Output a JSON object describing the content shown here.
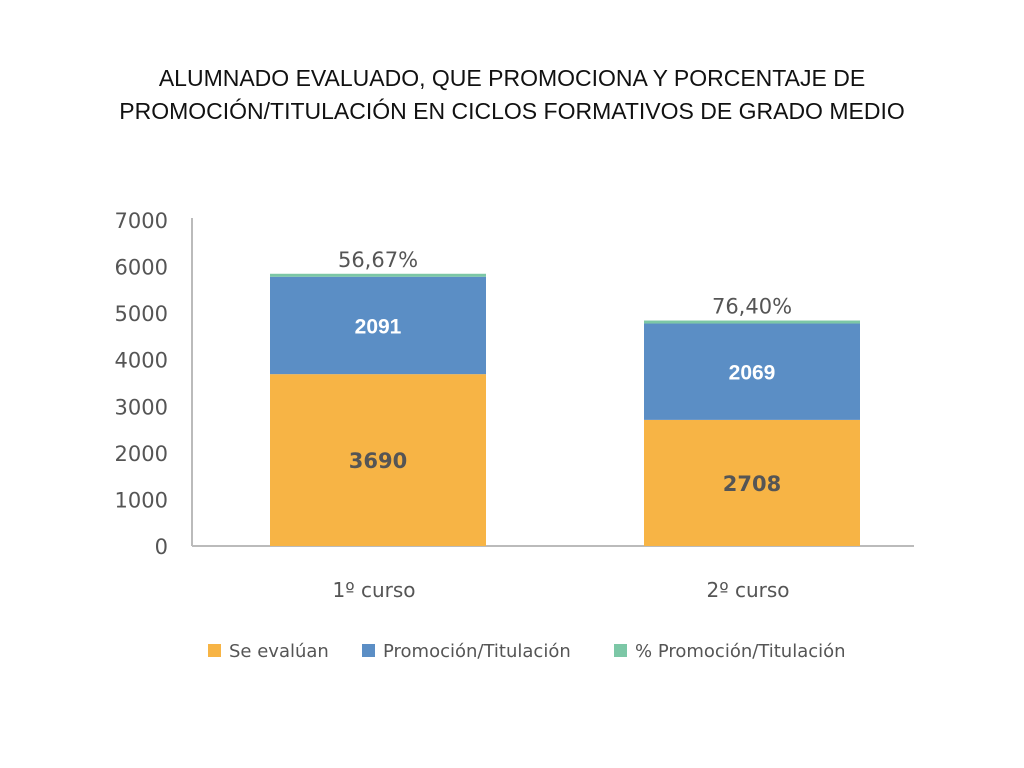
{
  "title": {
    "line1": "ALUMNADO EVALUADO, QUE PROMOCIONA Y PORCENTAJE DE",
    "line2": "PROMOCIÓN/TITULACIÓN EN CICLOS FORMATIVOS DE GRADO MEDIO"
  },
  "chart_data": {
    "type": "bar",
    "stacked": true,
    "categories": [
      "1º curso",
      "2º curso"
    ],
    "series": [
      {
        "name": "Se evalúan",
        "values": [
          3690,
          2708
        ],
        "color": "#F7B445",
        "labels": [
          "3690",
          "2708"
        ]
      },
      {
        "name": "Promoción/Titulación",
        "values": [
          2091,
          2069
        ],
        "color": "#5B8EC5",
        "labels": [
          "2091",
          "2069"
        ]
      },
      {
        "name": "% Promoción/Titulación",
        "values": [
          56.67,
          76.4
        ],
        "color": "#7CC7A6",
        "labels": [
          "56,67%",
          "76,40%"
        ]
      }
    ],
    "ylim": [
      0,
      7000
    ],
    "yticks": [
      "0",
      "1000",
      "2000",
      "3000",
      "4000",
      "5000",
      "6000",
      "7000"
    ],
    "grid": false,
    "legend": "bottom",
    "xlabel": "",
    "ylabel": ""
  }
}
